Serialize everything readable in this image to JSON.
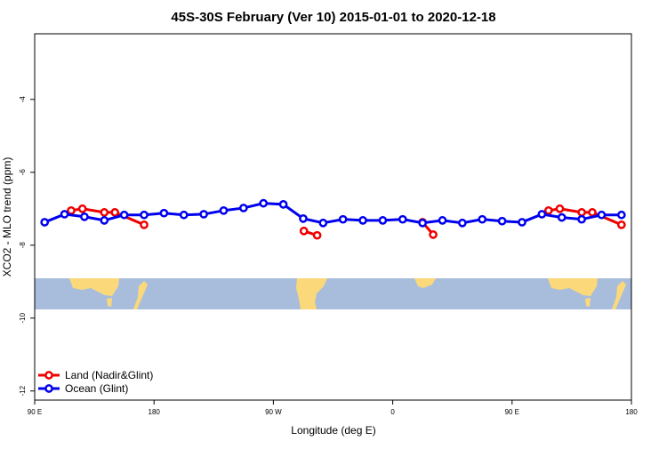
{
  "chart_data": {
    "type": "line",
    "title": "45S-30S February (Ver 10)   2015-01-01 to 2020-12-18",
    "x_label": "Longitude (deg E)",
    "y_label": "XCO2 - MLO trend (ppm)",
    "xlim": [
      90,
      540
    ],
    "ylim": [
      -12.25,
      -2.2
    ],
    "xticks": [
      {
        "value": 90,
        "label": "90 E"
      },
      180,
      {
        "value": 270,
        "label": "90 W"
      },
      {
        "value": 360,
        "label": "0"
      },
      {
        "value": 450,
        "label": "90 E"
      },
      {
        "value": 540,
        "label": "180"
      }
    ],
    "yticks": [
      -4,
      -6,
      -8,
      -10,
      -12
    ],
    "legend": "bottom-left",
    "series": [
      {
        "name": "Land (Nadir&Glint)",
        "color": "#ee0000",
        "x": [
          117.5,
          126,
          142.5,
          150.5,
          172.5,
          null,
          293,
          303,
          null,
          382.5,
          390.5,
          null,
          477.5,
          486,
          502.5,
          510.5,
          532.5
        ],
        "values": [
          -7.05,
          -7.0,
          -7.1,
          -7.1,
          -7.44,
          null,
          -7.61,
          -7.73,
          null,
          -7.37,
          -7.71,
          null,
          -7.05,
          -7.0,
          -7.1,
          -7.1,
          -7.44
        ]
      },
      {
        "name": "Ocean (Glint)",
        "color": "#0000ee",
        "x": [
          97.5,
          112.5,
          127.5,
          142.5,
          157.5,
          172.5,
          187.5,
          202.5,
          217.5,
          232.5,
          247.5,
          262.5,
          277.5,
          292.5,
          307.5,
          322.5,
          337.5,
          352.5,
          367.5,
          382.5,
          397.5,
          412.5,
          427.5,
          442.5,
          457.5,
          472.5,
          487.5,
          502.5,
          517.5,
          532.5
        ],
        "values": [
          -7.37,
          -7.15,
          -7.22,
          -7.32,
          -7.17,
          -7.17,
          -7.12,
          -7.17,
          -7.15,
          -7.05,
          -6.98,
          -6.85,
          -6.88,
          -7.27,
          -7.39,
          -7.29,
          -7.32,
          -7.32,
          -7.29,
          -7.39,
          -7.32,
          -7.39,
          -7.29,
          -7.34,
          -7.37,
          -7.15,
          -7.24,
          -7.29,
          -7.17,
          -7.17
        ]
      }
    ]
  }
}
